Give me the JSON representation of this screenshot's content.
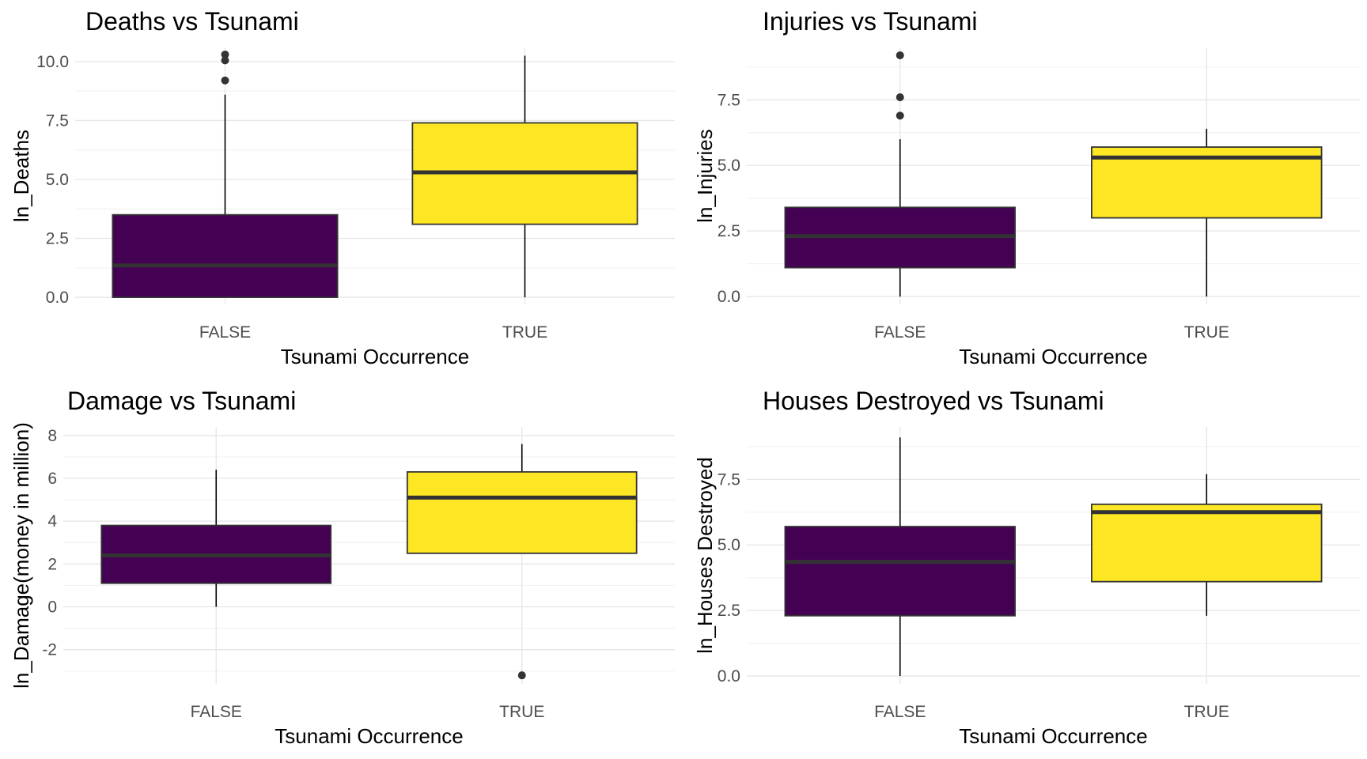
{
  "colors": {
    "FALSE": "#440154",
    "TRUE": "#FDE725"
  },
  "chart_data": [
    {
      "type": "box",
      "title": "Deaths vs Tsunami",
      "xlabel": "Tsunami Occurrence",
      "ylabel": "ln_Deaths",
      "categories": [
        "FALSE",
        "TRUE"
      ],
      "ylim": [
        -0.3,
        10.6
      ],
      "yticks": [
        0.0,
        2.5,
        5.0,
        7.5,
        10.0
      ],
      "ytick_labels": [
        "0.0",
        "2.5",
        "5.0",
        "7.5",
        "10.0"
      ],
      "boxes": [
        {
          "category": "FALSE",
          "whisker_low": 0.0,
          "q1": 0.0,
          "median": 1.35,
          "q3": 3.5,
          "whisker_high": 8.6,
          "outliers": [
            9.2,
            10.05,
            10.3
          ]
        },
        {
          "category": "TRUE",
          "whisker_low": 0.0,
          "q1": 3.1,
          "median": 5.3,
          "q3": 7.4,
          "whisker_high": 10.25,
          "outliers": []
        }
      ]
    },
    {
      "type": "box",
      "title": "Injuries vs Tsunami",
      "xlabel": "Tsunami Occurrence",
      "ylabel": "ln_Injuries",
      "categories": [
        "FALSE",
        "TRUE"
      ],
      "ylim": [
        -0.3,
        9.5
      ],
      "yticks": [
        0.0,
        2.5,
        5.0,
        7.5
      ],
      "ytick_labels": [
        "0.0",
        "2.5",
        "5.0",
        "7.5"
      ],
      "boxes": [
        {
          "category": "FALSE",
          "whisker_low": 0.0,
          "q1": 1.1,
          "median": 2.3,
          "q3": 3.4,
          "whisker_high": 6.0,
          "outliers": [
            6.9,
            7.6,
            9.2
          ]
        },
        {
          "category": "TRUE",
          "whisker_low": 0.0,
          "q1": 3.0,
          "median": 5.3,
          "q3": 5.7,
          "whisker_high": 6.4,
          "outliers": []
        }
      ]
    },
    {
      "type": "box",
      "title": "Damage vs Tsunami",
      "xlabel": "Tsunami Occurrence",
      "ylabel": "ln_Damage(money in million)",
      "categories": [
        "FALSE",
        "TRUE"
      ],
      "ylim": [
        -3.6,
        8.4
      ],
      "yticks": [
        -2,
        0,
        2,
        4,
        6,
        8
      ],
      "ytick_labels": [
        "-2",
        "0",
        "2",
        "4",
        "6",
        "8"
      ],
      "boxes": [
        {
          "category": "FALSE",
          "whisker_low": 0.0,
          "q1": 1.1,
          "median": 2.4,
          "q3": 3.8,
          "whisker_high": 6.4,
          "outliers": []
        },
        {
          "category": "TRUE",
          "whisker_low": 2.5,
          "q1": 2.5,
          "median": 5.1,
          "q3": 6.3,
          "whisker_high": 7.6,
          "outliers": [
            -3.2
          ]
        }
      ]
    },
    {
      "type": "box",
      "title": "Houses Destroyed vs Tsunami",
      "xlabel": "Tsunami Occurrence",
      "ylabel": "ln_Houses Destroyed",
      "categories": [
        "FALSE",
        "TRUE"
      ],
      "ylim": [
        -0.3,
        9.5
      ],
      "yticks": [
        0.0,
        2.5,
        5.0,
        7.5
      ],
      "ytick_labels": [
        "0.0",
        "2.5",
        "5.0",
        "7.5"
      ],
      "boxes": [
        {
          "category": "FALSE",
          "whisker_low": 0.0,
          "q1": 2.3,
          "median": 4.35,
          "q3": 5.7,
          "whisker_high": 9.1,
          "outliers": []
        },
        {
          "category": "TRUE",
          "whisker_low": 2.3,
          "q1": 3.6,
          "median": 6.25,
          "q3": 6.55,
          "whisker_high": 7.7,
          "outliers": []
        }
      ]
    }
  ]
}
